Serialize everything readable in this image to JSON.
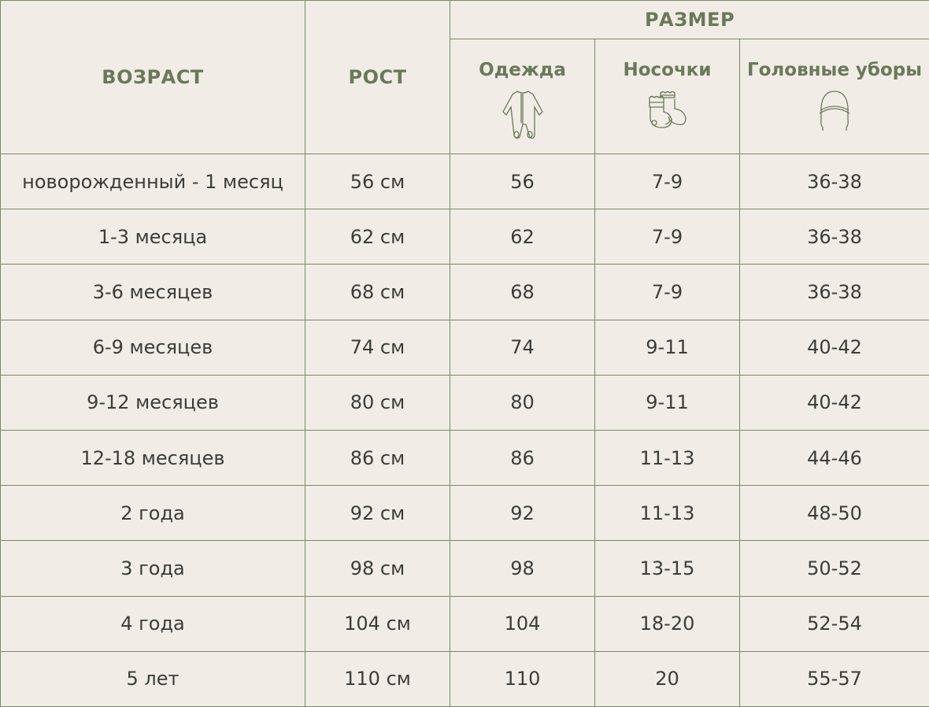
{
  "header": {
    "age": "ВОЗРАСТ",
    "height": "РОСТ",
    "size": "РАЗМЕР",
    "clothing": "Одежда",
    "socks": "Носочки",
    "hats": "Головные уборы"
  },
  "icons": {
    "clothing": "baby-romper-icon",
    "socks": "baby-socks-icon",
    "hats": "baby-hat-icon"
  },
  "colors": {
    "background": "#f1ede6",
    "accent": "#6b785b",
    "border": "#7b8769",
    "text": "#3c3c3a"
  },
  "rows": [
    {
      "age": "новорожденный - 1 месяц",
      "height": "56 см",
      "clothing": "56",
      "socks": "7-9",
      "hats": "36-38"
    },
    {
      "age": "1-3 месяца",
      "height": "62 см",
      "clothing": "62",
      "socks": "7-9",
      "hats": "36-38"
    },
    {
      "age": "3-6 месяцев",
      "height": "68 см",
      "clothing": "68",
      "socks": "7-9",
      "hats": "36-38"
    },
    {
      "age": "6-9 месяцев",
      "height": "74 см",
      "clothing": "74",
      "socks": "9-11",
      "hats": "40-42"
    },
    {
      "age": "9-12 месяцев",
      "height": "80 см",
      "clothing": "80",
      "socks": "9-11",
      "hats": "40-42"
    },
    {
      "age": "12-18 месяцев",
      "height": "86 см",
      "clothing": "86",
      "socks": "11-13",
      "hats": "44-46"
    },
    {
      "age": "2 года",
      "height": "92 см",
      "clothing": "92",
      "socks": "11-13",
      "hats": "48-50"
    },
    {
      "age": "3 года",
      "height": "98 см",
      "clothing": "98",
      "socks": "13-15",
      "hats": "50-52"
    },
    {
      "age": "4 года",
      "height": "104 см",
      "clothing": "104",
      "socks": "18-20",
      "hats": "52-54"
    },
    {
      "age": "5 лет",
      "height": "110 см",
      "clothing": "110",
      "socks": "20",
      "hats": "55-57"
    }
  ]
}
